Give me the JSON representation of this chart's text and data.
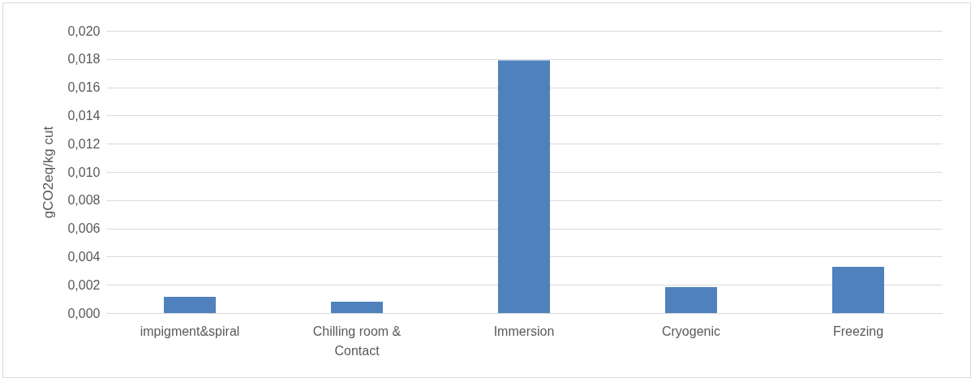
{
  "chart_data": {
    "type": "bar",
    "ylabel": "gCO2eq/kg cut",
    "categories": [
      "impigment&spiral",
      "Chilling room & Contact",
      "Immersion",
      "Cryogenic",
      "Freezing"
    ],
    "values": [
      0.00115,
      0.0008,
      0.0179,
      0.00184,
      0.00328
    ],
    "color": "#4f81bd",
    "ylim": [
      0,
      0.02
    ],
    "yticks": [
      {
        "value": 0,
        "label": "0,000"
      },
      {
        "value": 0.002,
        "label": "0,002"
      },
      {
        "value": 0.004,
        "label": "0,004"
      },
      {
        "value": 0.006,
        "label": "0,006"
      },
      {
        "value": 0.008,
        "label": "0,008"
      },
      {
        "value": 0.01,
        "label": "0,010"
      },
      {
        "value": 0.012,
        "label": "0,012"
      },
      {
        "value": 0.014,
        "label": "0,014"
      },
      {
        "value": 0.016,
        "label": "0,016"
      },
      {
        "value": 0.018,
        "label": "0,018"
      },
      {
        "value": 0.02,
        "label": "0,020"
      }
    ],
    "grid": true
  }
}
